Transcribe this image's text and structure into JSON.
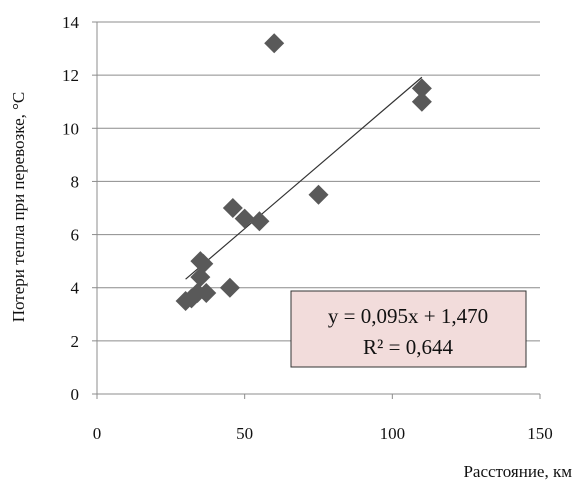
{
  "chart_data": {
    "type": "scatter",
    "xlabel": "Расстояние, км",
    "ylabel": "Потери тепла при перевозке, °С",
    "xlim": [
      0,
      150
    ],
    "ylim": [
      0,
      14
    ],
    "x_ticks": [
      "0",
      "50",
      "100",
      "150"
    ],
    "y_ticks": [
      "0",
      "2",
      "4",
      "6",
      "8",
      "10",
      "12",
      "14"
    ],
    "grid": "horizontal",
    "marker": "diamond",
    "marker_color": "#595959",
    "series": [
      {
        "x": [
          30,
          32,
          34,
          35,
          36,
          37,
          35,
          45,
          46,
          50,
          55,
          60,
          75,
          110,
          110
        ],
        "y": [
          3.5,
          3.6,
          3.8,
          4.4,
          4.9,
          3.8,
          5.0,
          4.0,
          7.0,
          6.6,
          6.5,
          13.2,
          7.5,
          11.5,
          11.0
        ]
      }
    ],
    "trendline": {
      "type": "linear",
      "slope": 0.095,
      "intercept": 1.47,
      "x_range": [
        30,
        110
      ],
      "equation": "y = 0,095x + 1,470",
      "r_squared": "R² = 0,644",
      "box_fill": "#f2dcdb"
    }
  }
}
